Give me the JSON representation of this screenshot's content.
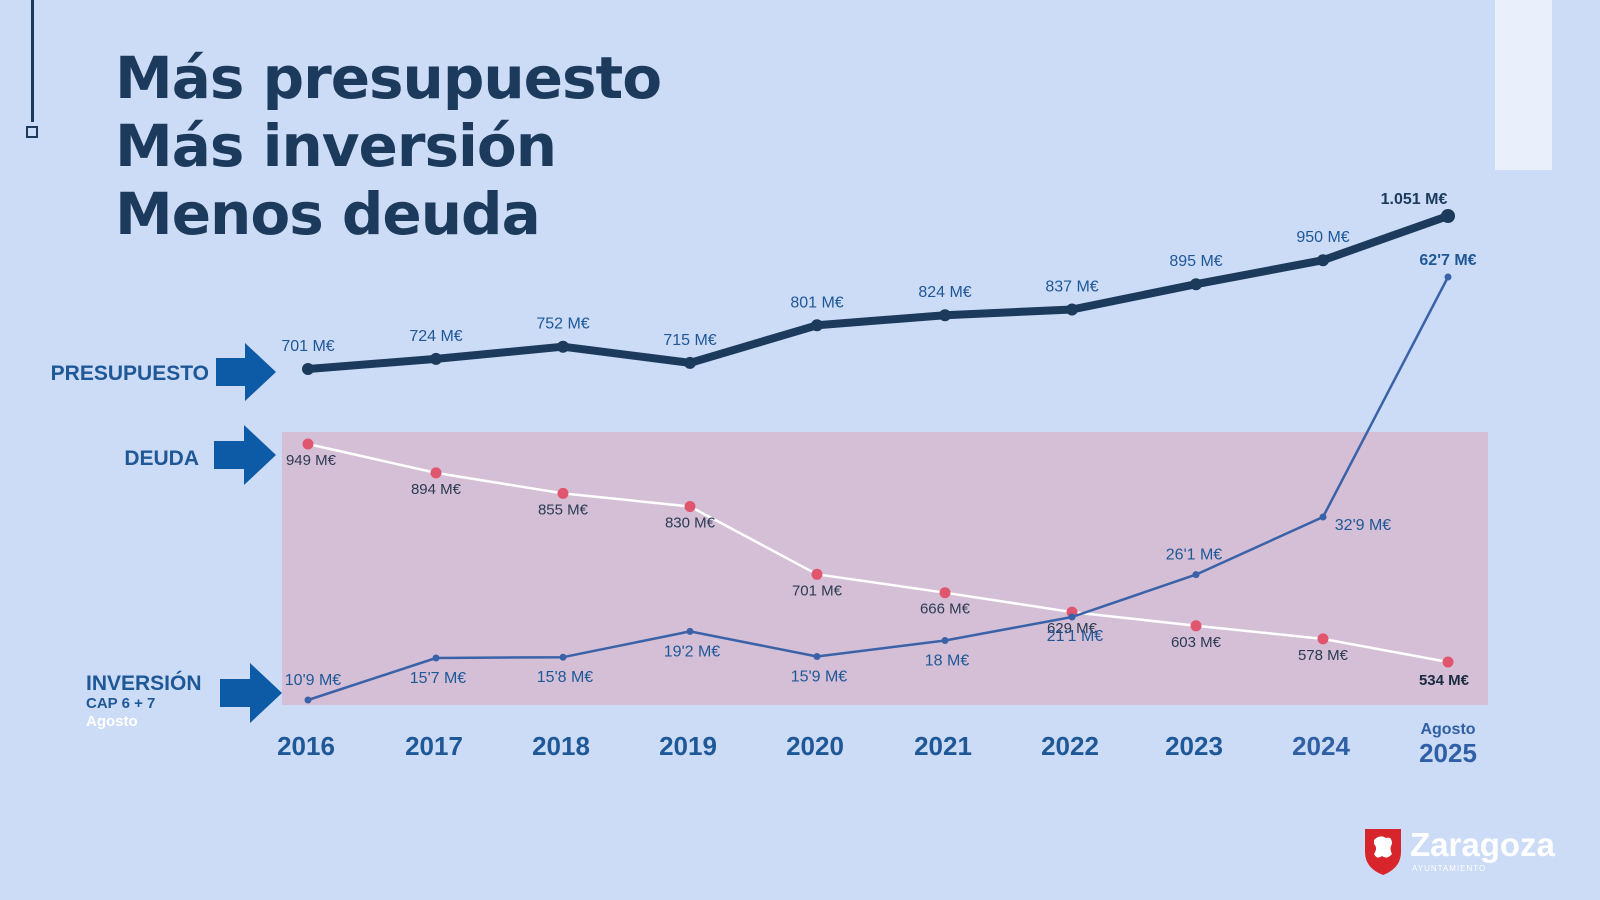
{
  "headline": [
    "Más presupuesto",
    "Más inversión",
    "Menos deuda"
  ],
  "colors": {
    "background": "#ccdbf6",
    "presupuesto": "#1b3a5c",
    "deuda_line": "#ffffff",
    "deuda_marker": "#e0566e",
    "deuda_band": "#d4bfd6",
    "inversion": "#3a62a8",
    "arrow": "#0d5aa7",
    "label": "#1f5897"
  },
  "series_labels": {
    "presupuesto": "PRESUPUESTO",
    "deuda": "DEUDA",
    "inversion": "INVERSIÓN",
    "inversion_sub1": "CAP 6 + 7",
    "inversion_sub2": "Agosto"
  },
  "logo": {
    "name": "Zaragoza",
    "sub": "AYUNTAMIENTO"
  },
  "chart_data": {
    "type": "line",
    "x": [
      "2016",
      "2017",
      "2018",
      "2019",
      "2020",
      "2021",
      "2022",
      "2023",
      "2024",
      "2025"
    ],
    "x_note_last": "Agosto",
    "series": [
      {
        "name": "PRESUPUESTO",
        "unit": "M€",
        "values": [
          701,
          724,
          752,
          715,
          801,
          824,
          837,
          895,
          950,
          1051
        ],
        "labels": [
          "701 M€",
          "724 M€",
          "752 M€",
          "715 M€",
          "801 M€",
          "824 M€",
          "837 M€",
          "895 M€",
          "950 M€",
          "1.051 M€"
        ]
      },
      {
        "name": "DEUDA",
        "unit": "M€",
        "values": [
          949,
          894,
          855,
          830,
          701,
          666,
          629,
          603,
          578,
          534
        ],
        "labels": [
          "949 M€",
          "894 M€",
          "855 M€",
          "830 M€",
          "701 M€",
          "666 M€",
          "629 M€",
          "603 M€",
          "578 M€",
          "534 M€"
        ]
      },
      {
        "name": "INVERSIÓN",
        "unit": "M€",
        "values": [
          10.9,
          15.7,
          15.8,
          19.2,
          15.9,
          18,
          21.1,
          26.1,
          32.9,
          62.7
        ],
        "labels": [
          "10'9 M€",
          "15'7 M€",
          "15'8 M€",
          "19'2 M€",
          "15'9 M€",
          "18 M€",
          "21'1 M€",
          "26'1 M€",
          "32'9 M€",
          "62'7 M€"
        ]
      }
    ]
  }
}
